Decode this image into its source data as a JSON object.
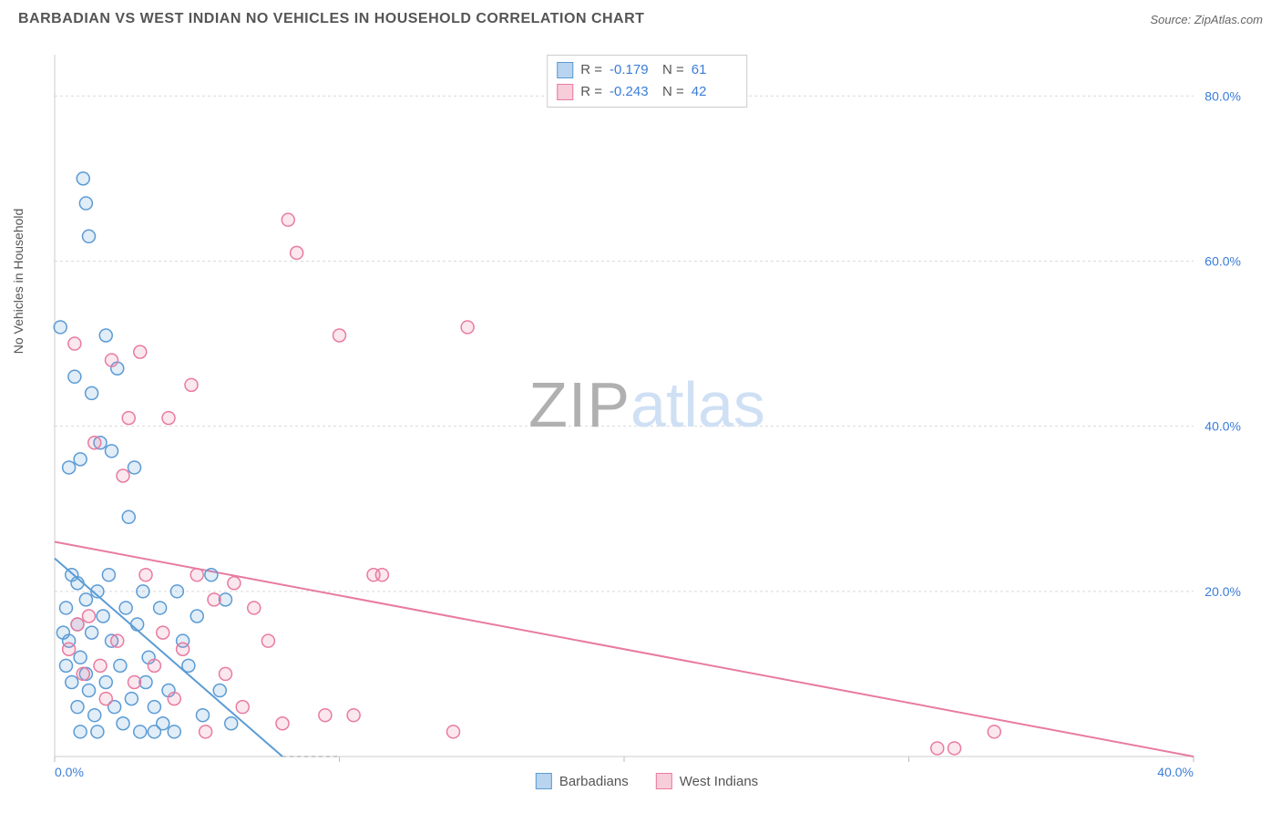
{
  "header": {
    "title": "BARBADIAN VS WEST INDIAN NO VEHICLES IN HOUSEHOLD CORRELATION CHART",
    "source": "Source: ZipAtlas.com"
  },
  "watermark": {
    "part1": "ZIP",
    "part2": "atlas"
  },
  "ylabel": "No Vehicles in Household",
  "chart": {
    "type": "scatter",
    "background_color": "#ffffff",
    "grid_color": "#d9d9d9",
    "axis_color": "#cccccc",
    "tick_color": "#bbbbbb",
    "tick_label_color": "#3b7dd8",
    "label_fontsize": 14,
    "marker_radius": 7,
    "marker_fill_opacity": 0.18,
    "marker_stroke_width": 1.5,
    "xlim": [
      0,
      40
    ],
    "ylim": [
      0,
      85
    ],
    "x_ticks": [
      0,
      10,
      20,
      30,
      40
    ],
    "x_tick_labels": [
      "0.0%",
      "",
      "",
      "",
      "40.0%"
    ],
    "y_ticks": [
      20,
      40,
      60,
      80
    ],
    "y_tick_labels": [
      "20.0%",
      "40.0%",
      "60.0%",
      "80.0%"
    ],
    "series": [
      {
        "name": "Barbadians",
        "color": "#5b9bd5",
        "fill": "#b8d4ee",
        "R": "-0.179",
        "N": "61",
        "trend": {
          "x1": 0,
          "y1": 24,
          "x2": 8,
          "y2": 0,
          "dash_x2": 10
        },
        "points": [
          [
            0.2,
            52
          ],
          [
            0.3,
            15
          ],
          [
            0.4,
            11
          ],
          [
            0.4,
            18
          ],
          [
            0.5,
            35
          ],
          [
            0.5,
            14
          ],
          [
            0.6,
            9
          ],
          [
            0.6,
            22
          ],
          [
            0.7,
            46
          ],
          [
            0.8,
            6
          ],
          [
            0.8,
            16
          ],
          [
            0.8,
            21
          ],
          [
            0.9,
            36
          ],
          [
            0.9,
            12
          ],
          [
            0.9,
            3
          ],
          [
            1.0,
            70
          ],
          [
            1.1,
            67
          ],
          [
            1.1,
            10
          ],
          [
            1.1,
            19
          ],
          [
            1.2,
            63
          ],
          [
            1.2,
            8
          ],
          [
            1.3,
            44
          ],
          [
            1.3,
            15
          ],
          [
            1.4,
            5
          ],
          [
            1.5,
            20
          ],
          [
            1.5,
            3
          ],
          [
            1.6,
            38
          ],
          [
            1.7,
            17
          ],
          [
            1.8,
            51
          ],
          [
            1.8,
            9
          ],
          [
            1.9,
            22
          ],
          [
            2.0,
            37
          ],
          [
            2.0,
            14
          ],
          [
            2.1,
            6
          ],
          [
            2.2,
            47
          ],
          [
            2.3,
            11
          ],
          [
            2.4,
            4
          ],
          [
            2.5,
            18
          ],
          [
            2.6,
            29
          ],
          [
            2.7,
            7
          ],
          [
            2.8,
            35
          ],
          [
            2.9,
            16
          ],
          [
            3.0,
            3
          ],
          [
            3.1,
            20
          ],
          [
            3.2,
            9
          ],
          [
            3.3,
            12
          ],
          [
            3.5,
            6
          ],
          [
            3.5,
            3
          ],
          [
            3.7,
            18
          ],
          [
            3.8,
            4
          ],
          [
            4.0,
            8
          ],
          [
            4.2,
            3
          ],
          [
            4.3,
            20
          ],
          [
            4.5,
            14
          ],
          [
            4.7,
            11
          ],
          [
            5.0,
            17
          ],
          [
            5.2,
            5
          ],
          [
            5.5,
            22
          ],
          [
            5.8,
            8
          ],
          [
            6.0,
            19
          ],
          [
            6.2,
            4
          ]
        ]
      },
      {
        "name": "West Indians",
        "color": "#e87ba0",
        "fill": "#f6cdd9",
        "R": "-0.243",
        "N": "42",
        "trend": {
          "x1": 0,
          "y1": 26,
          "x2": 40,
          "y2": 0
        },
        "points": [
          [
            0.5,
            13
          ],
          [
            0.7,
            50
          ],
          [
            0.8,
            16
          ],
          [
            1.0,
            10
          ],
          [
            1.2,
            17
          ],
          [
            1.4,
            38
          ],
          [
            1.6,
            11
          ],
          [
            1.8,
            7
          ],
          [
            2.0,
            48
          ],
          [
            2.2,
            14
          ],
          [
            2.4,
            34
          ],
          [
            2.6,
            41
          ],
          [
            2.8,
            9
          ],
          [
            3.0,
            49
          ],
          [
            3.2,
            22
          ],
          [
            3.5,
            11
          ],
          [
            3.8,
            15
          ],
          [
            4.0,
            41
          ],
          [
            4.2,
            7
          ],
          [
            4.5,
            13
          ],
          [
            4.8,
            45
          ],
          [
            5.0,
            22
          ],
          [
            5.3,
            3
          ],
          [
            5.6,
            19
          ],
          [
            6.0,
            10
          ],
          [
            6.3,
            21
          ],
          [
            6.6,
            6
          ],
          [
            7.0,
            18
          ],
          [
            7.5,
            14
          ],
          [
            8.0,
            4
          ],
          [
            8.2,
            65
          ],
          [
            8.5,
            61
          ],
          [
            9.5,
            5
          ],
          [
            10.0,
            51
          ],
          [
            10.5,
            5
          ],
          [
            11.2,
            22
          ],
          [
            11.5,
            22
          ],
          [
            14.0,
            3
          ],
          [
            14.5,
            52
          ],
          [
            31.0,
            1
          ],
          [
            31.6,
            1
          ],
          [
            33.0,
            3
          ]
        ]
      }
    ]
  },
  "legend": {
    "series1_label": "Barbadians",
    "series2_label": "West Indians",
    "r_label": "R =",
    "n_label": "N ="
  }
}
